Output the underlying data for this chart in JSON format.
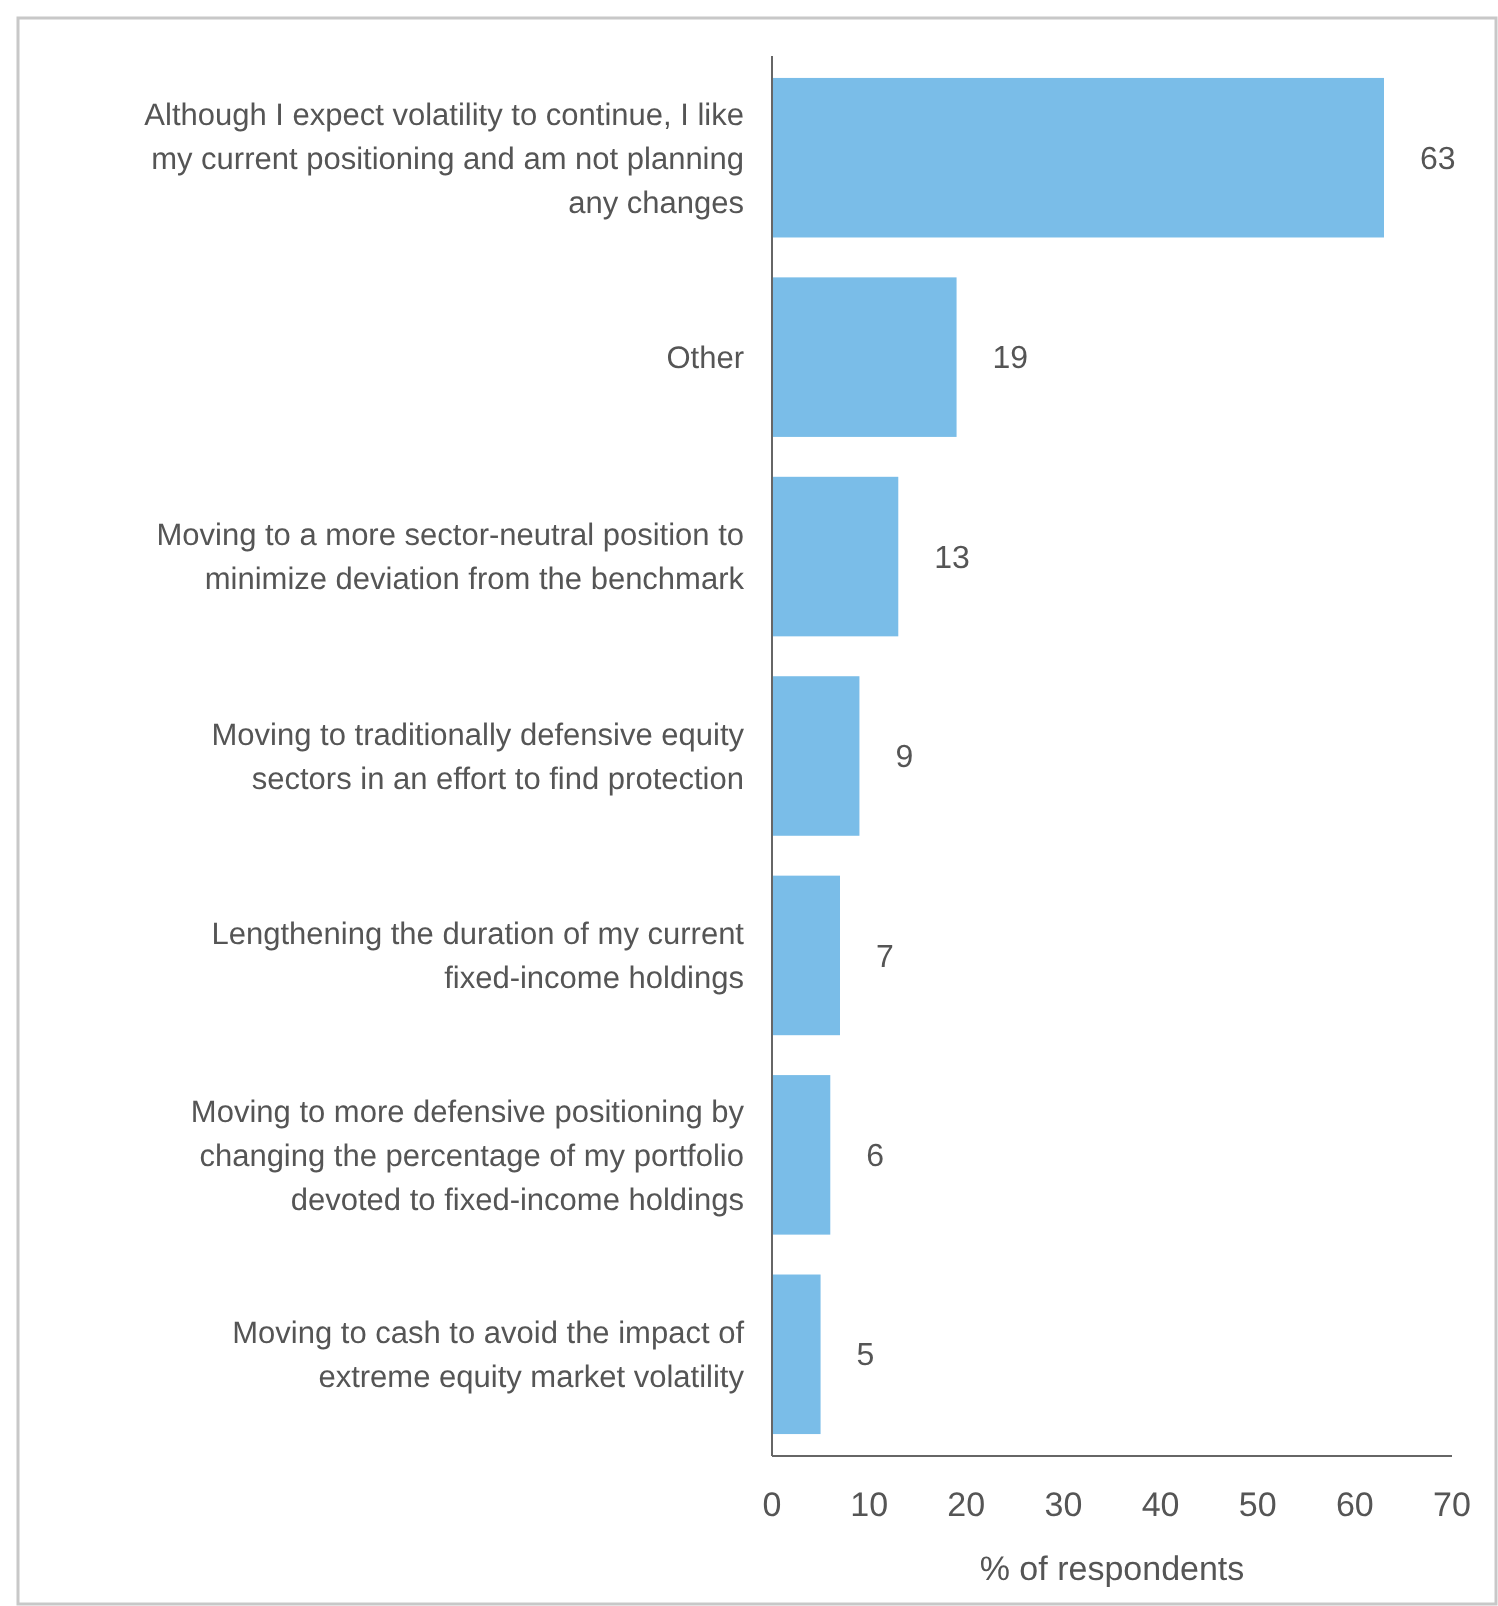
{
  "chart_data": {
    "type": "bar",
    "orientation": "horizontal",
    "xlabel": "% of respondents",
    "categories": [
      "Although I expect volatility to continue, I like my current positioning and am not planning any changes",
      "Other",
      "Moving to a more sector-neutral position to minimize deviation from the benchmark",
      "Moving to traditionally defensive equity sectors in an effort to find protection",
      "Lengthening the duration of my current fixed-income holdings",
      "Moving to more defensive positioning by changing the percentage of my portfolio devoted to fixed-income holdings",
      "Moving to cash to avoid the impact of extreme equity market volatility"
    ],
    "values": [
      63,
      19,
      13,
      9,
      7,
      6,
      5
    ],
    "color": "#7abde8",
    "data_labels": true,
    "xlim": [
      0,
      70
    ],
    "xticks": [
      0,
      10,
      20,
      30,
      40,
      50,
      60,
      70
    ]
  }
}
